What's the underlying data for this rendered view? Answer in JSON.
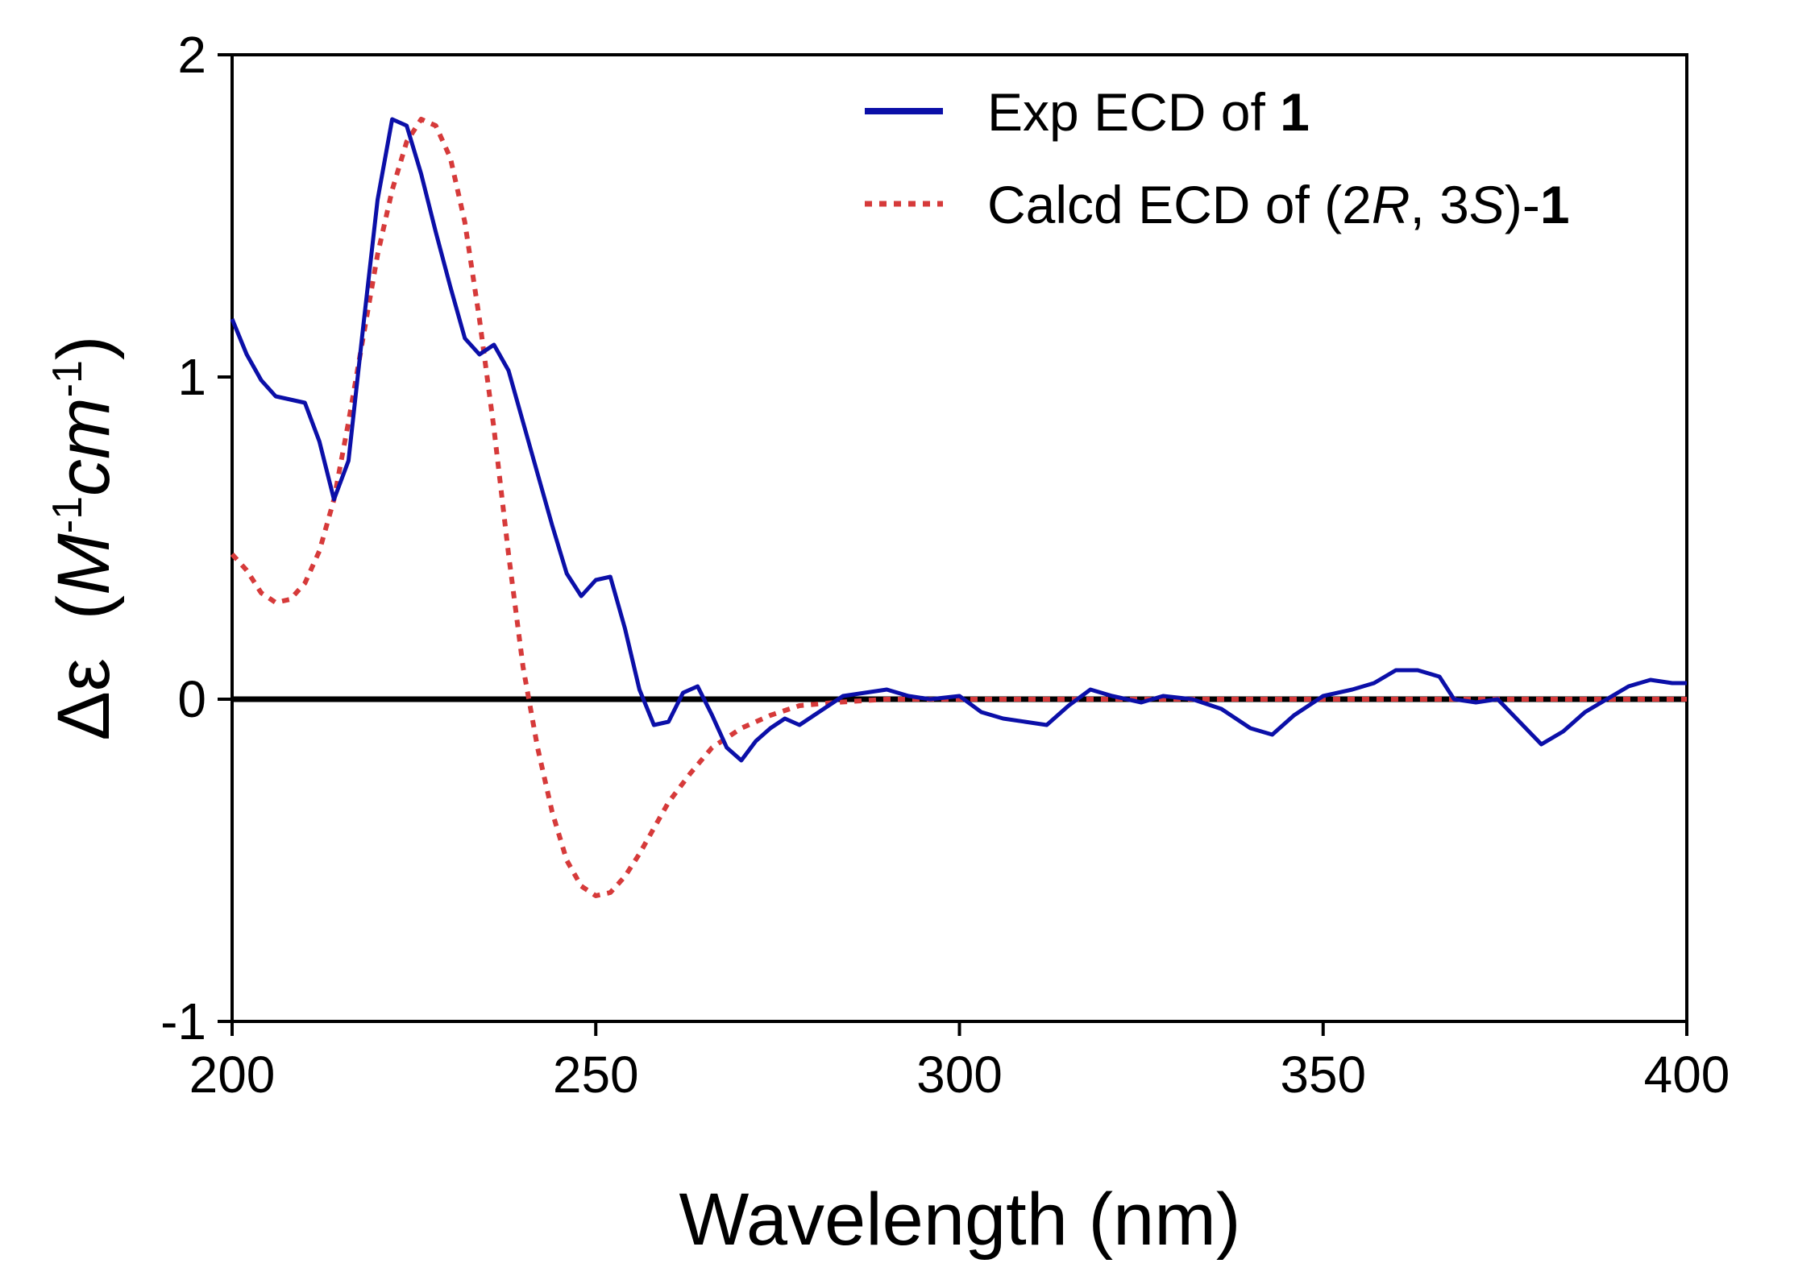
{
  "chart_data": {
    "type": "line",
    "xlabel": "Wavelength (nm)",
    "ylabel": {
      "symbol": "Δε",
      "unit_open": "(",
      "unit_m": "M",
      "unit_m_exp": "-1",
      "unit_cm": "cm",
      "unit_cm_exp": "-1",
      "unit_close": ")"
    },
    "xlim": [
      200,
      400
    ],
    "ylim": [
      -1,
      2
    ],
    "xticks": [
      "200",
      "250",
      "300",
      "350",
      "400"
    ],
    "yticks": [
      "2",
      "1",
      "0",
      "-1"
    ],
    "legend_position": "top-right",
    "legend": [
      {
        "prefix": "Exp ECD of ",
        "bold": "1"
      },
      {
        "prefix": "Calcd ECD of (2",
        "r": "R",
        "mid": ", 3",
        "s": "S",
        "suffix": ")-",
        "bold": "1"
      }
    ],
    "series": [
      {
        "name": "Exp ECD of 1",
        "color": "#0b0fa8",
        "style": "solid",
        "points": [
          [
            200,
            1.18
          ],
          [
            202,
            1.07
          ],
          [
            204,
            0.99
          ],
          [
            206,
            0.94
          ],
          [
            208,
            0.93
          ],
          [
            210,
            0.92
          ],
          [
            212,
            0.8
          ],
          [
            214,
            0.62
          ],
          [
            216,
            0.74
          ],
          [
            218,
            1.15
          ],
          [
            220,
            1.55
          ],
          [
            222,
            1.8
          ],
          [
            224,
            1.78
          ],
          [
            226,
            1.63
          ],
          [
            228,
            1.45
          ],
          [
            230,
            1.28
          ],
          [
            232,
            1.12
          ],
          [
            234,
            1.07
          ],
          [
            236,
            1.1
          ],
          [
            238,
            1.02
          ],
          [
            240,
            0.86
          ],
          [
            242,
            0.7
          ],
          [
            244,
            0.54
          ],
          [
            246,
            0.39
          ],
          [
            248,
            0.32
          ],
          [
            250,
            0.37
          ],
          [
            252,
            0.38
          ],
          [
            254,
            0.22
          ],
          [
            256,
            0.03
          ],
          [
            258,
            -0.08
          ],
          [
            260,
            -0.07
          ],
          [
            262,
            0.02
          ],
          [
            264,
            0.04
          ],
          [
            266,
            -0.05
          ],
          [
            268,
            -0.15
          ],
          [
            270,
            -0.19
          ],
          [
            272,
            -0.13
          ],
          [
            274,
            -0.09
          ],
          [
            276,
            -0.06
          ],
          [
            278,
            -0.08
          ],
          [
            280,
            -0.05
          ],
          [
            282,
            -0.02
          ],
          [
            284,
            0.01
          ],
          [
            287,
            0.02
          ],
          [
            290,
            0.03
          ],
          [
            293,
            0.01
          ],
          [
            296,
            0.0
          ],
          [
            300,
            0.01
          ],
          [
            303,
            -0.04
          ],
          [
            306,
            -0.06
          ],
          [
            309,
            -0.07
          ],
          [
            312,
            -0.08
          ],
          [
            315,
            -0.02
          ],
          [
            318,
            0.03
          ],
          [
            321,
            0.01
          ],
          [
            325,
            -0.01
          ],
          [
            328,
            0.01
          ],
          [
            332,
            0.0
          ],
          [
            336,
            -0.03
          ],
          [
            340,
            -0.09
          ],
          [
            343,
            -0.11
          ],
          [
            346,
            -0.05
          ],
          [
            350,
            0.01
          ],
          [
            354,
            0.03
          ],
          [
            357,
            0.05
          ],
          [
            360,
            0.09
          ],
          [
            363,
            0.09
          ],
          [
            366,
            0.07
          ],
          [
            368,
            0.0
          ],
          [
            371,
            -0.01
          ],
          [
            374,
            0.0
          ],
          [
            377,
            -0.07
          ],
          [
            380,
            -0.14
          ],
          [
            383,
            -0.1
          ],
          [
            386,
            -0.04
          ],
          [
            389,
            0.0
          ],
          [
            392,
            0.04
          ],
          [
            395,
            0.06
          ],
          [
            398,
            0.05
          ],
          [
            400,
            0.05
          ]
        ]
      },
      {
        "name": "Calcd ECD of (2R, 3S)-1",
        "color": "#d63a3a",
        "style": "dotted",
        "points": [
          [
            200,
            0.45
          ],
          [
            202,
            0.4
          ],
          [
            204,
            0.33
          ],
          [
            206,
            0.3
          ],
          [
            208,
            0.31
          ],
          [
            210,
            0.36
          ],
          [
            212,
            0.46
          ],
          [
            214,
            0.62
          ],
          [
            216,
            0.86
          ],
          [
            218,
            1.12
          ],
          [
            220,
            1.38
          ],
          [
            222,
            1.58
          ],
          [
            224,
            1.73
          ],
          [
            226,
            1.8
          ],
          [
            228,
            1.78
          ],
          [
            230,
            1.68
          ],
          [
            232,
            1.48
          ],
          [
            234,
            1.18
          ],
          [
            236,
            0.84
          ],
          [
            238,
            0.45
          ],
          [
            240,
            0.1
          ],
          [
            242,
            -0.15
          ],
          [
            244,
            -0.35
          ],
          [
            246,
            -0.5
          ],
          [
            248,
            -0.58
          ],
          [
            250,
            -0.61
          ],
          [
            252,
            -0.6
          ],
          [
            254,
            -0.55
          ],
          [
            256,
            -0.48
          ],
          [
            258,
            -0.4
          ],
          [
            260,
            -0.32
          ],
          [
            263,
            -0.23
          ],
          [
            266,
            -0.15
          ],
          [
            270,
            -0.09
          ],
          [
            274,
            -0.05
          ],
          [
            278,
            -0.02
          ],
          [
            283,
            -0.01
          ],
          [
            290,
            0.0
          ],
          [
            300,
            0.0
          ],
          [
            320,
            0.0
          ],
          [
            340,
            0.0
          ],
          [
            360,
            0.0
          ],
          [
            380,
            0.0
          ],
          [
            400,
            0.0
          ]
        ]
      }
    ]
  }
}
